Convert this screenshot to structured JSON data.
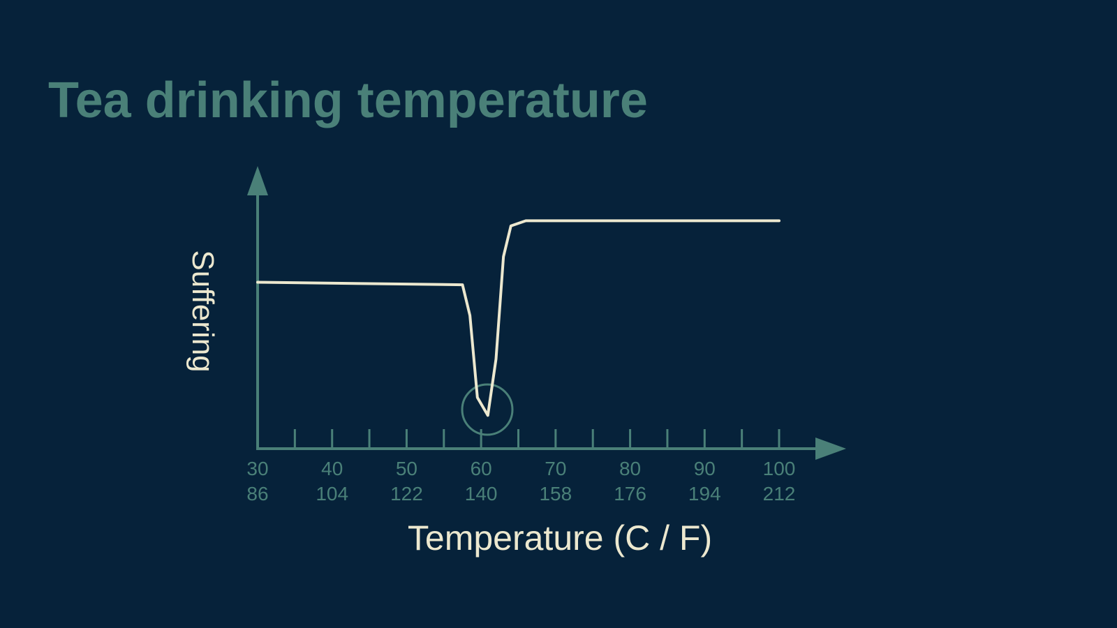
{
  "chart_data": {
    "type": "line",
    "title": "Tea drinking temperature",
    "xlabel": "Temperature (C / F)",
    "ylabel": "Suffering",
    "x": [
      30,
      57.5,
      58.5,
      59.5,
      60.9,
      62,
      63,
      64,
      66,
      100
    ],
    "series": [
      {
        "color": "#ece8cf",
        "values": [
          65,
          64,
          52,
          20,
          13,
          35,
          75,
          87,
          89,
          89
        ]
      }
    ],
    "xlim": [
      30,
      100
    ],
    "ylim": [
      0,
      100
    ],
    "xticks": [
      30,
      40,
      50,
      60,
      70,
      80,
      90,
      100
    ],
    "xticks_secondary": [
      86,
      104,
      122,
      140,
      158,
      176,
      194,
      212
    ],
    "xminorticks": [
      35,
      45,
      55,
      65,
      75,
      85,
      95
    ],
    "axis_color": "#4a8078"
  }
}
